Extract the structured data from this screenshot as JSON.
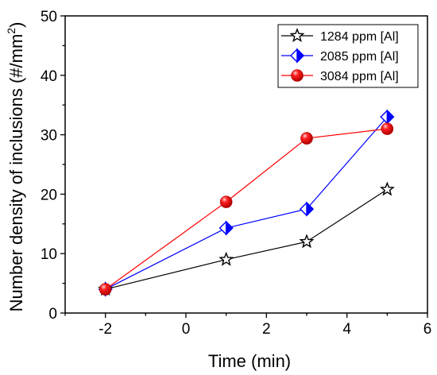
{
  "chart_data": {
    "type": "line",
    "title": "",
    "xlabel": "Time (min)",
    "ylabel_main": "Number density of inclusions (#/mm",
    "ylabel_sup": "2",
    "ylabel_end": ")",
    "xlim": [
      -3,
      6
    ],
    "ylim": [
      0,
      50
    ],
    "xticks": [
      -2,
      0,
      2,
      4,
      6
    ],
    "yticks": [
      0,
      10,
      20,
      30,
      40,
      50
    ],
    "grid": false,
    "legend_position": "top-right",
    "series": [
      {
        "name": "1284 ppm [Al]",
        "color": "#000000",
        "marker": "star-icon",
        "x": [
          -2,
          1,
          3,
          5
        ],
        "y": [
          4.0,
          9.0,
          12.0,
          20.8
        ]
      },
      {
        "name": "2085 ppm [Al]",
        "color": "#0000ff",
        "marker": "half-diamond-icon",
        "x": [
          -2,
          1,
          3,
          5
        ],
        "y": [
          4.0,
          14.3,
          17.5,
          33.0
        ]
      },
      {
        "name": "3084 ppm [Al]",
        "color": "#ff0000",
        "marker": "sphere-icon",
        "x": [
          -2,
          1,
          3,
          5
        ],
        "y": [
          4.0,
          18.7,
          29.4,
          31.0
        ]
      }
    ]
  }
}
